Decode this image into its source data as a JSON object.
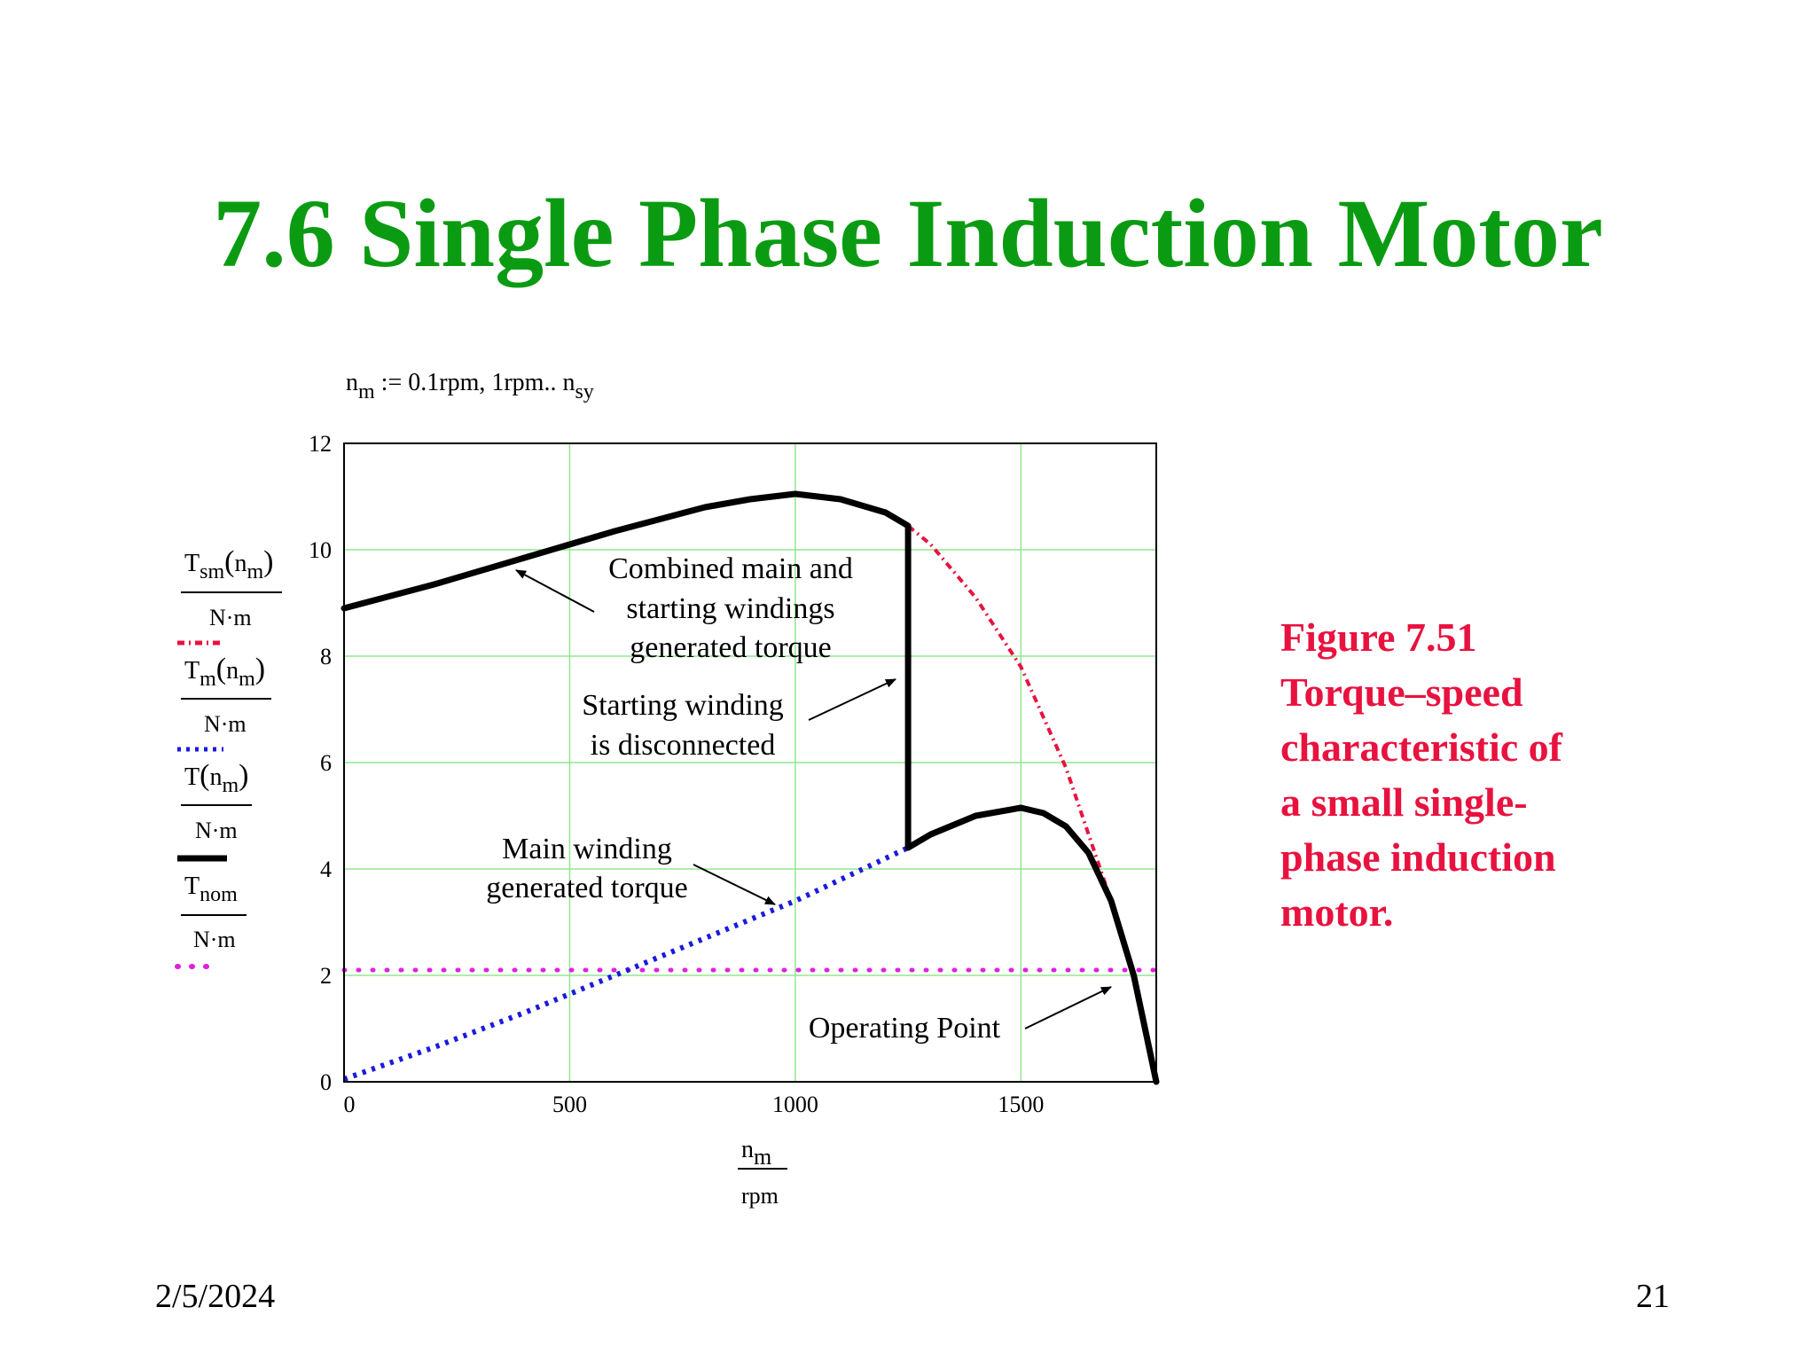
{
  "slide": {
    "title": "7.6 Single Phase Induction  Motor",
    "date": "2/5/2024",
    "page_number": "21",
    "caption_lines": [
      "Figure 7.51",
      "Torque–speed",
      "characteristic of",
      "a small single-",
      "phase induction",
      "motor."
    ]
  },
  "range_def": {
    "n": "n",
    "n_sub": "m",
    "rest": " := 0.1rpm, 1rpm.. n",
    "end_sub": "sy"
  },
  "legend": [
    {
      "num": "T",
      "sub": "sm",
      "arg": "n",
      "arg_sub": "m",
      "den": "N·m",
      "style": "dash-dot",
      "color": "#e8123f"
    },
    {
      "num": "T",
      "sub": "m",
      "arg": "n",
      "arg_sub": "m",
      "den": "N·m",
      "style": "dotted",
      "color": "#1a1ae0"
    },
    {
      "num": "T",
      "sub": "",
      "arg": "n",
      "arg_sub": "m",
      "den": "N·m",
      "style": "solid",
      "color": "#000000"
    },
    {
      "num": "T",
      "sub": "nom",
      "arg": "",
      "arg_sub": "",
      "den": "N·m",
      "style": "dotted",
      "color": "#e020e0"
    }
  ],
  "annotations": [
    {
      "lines": [
        "Combined main and",
        "starting windings",
        "generated torque"
      ]
    },
    {
      "lines": [
        "Starting winding",
        "is disconnected"
      ]
    },
    {
      "lines": [
        "Main winding",
        "generated torque"
      ]
    },
    {
      "lines": [
        "Operating Point"
      ]
    }
  ],
  "chart_data": {
    "type": "line",
    "xlabel": {
      "main": "n",
      "sub": "m",
      "den": "rpm"
    },
    "xlim": [
      0,
      1800
    ],
    "ylim": [
      0,
      12
    ],
    "xticks": [
      0,
      500,
      1000,
      1500
    ],
    "yticks": [
      0,
      2,
      4,
      6,
      8,
      10,
      12
    ],
    "grid": true,
    "series": [
      {
        "key": "Tsm",
        "color": "#e8123f",
        "style": "dash-dot",
        "x": [
          0,
          200,
          400,
          600,
          800,
          900,
          1000,
          1100,
          1200,
          1250,
          1300,
          1400,
          1500,
          1600,
          1680,
          1720,
          1760,
          1800
        ],
        "y": [
          8.9,
          9.35,
          9.85,
          10.35,
          10.8,
          10.95,
          11.05,
          10.95,
          10.7,
          10.45,
          10.1,
          9.1,
          7.8,
          5.9,
          3.9,
          2.9,
          1.7,
          0
        ]
      },
      {
        "key": "Tm",
        "color": "#1a1ae0",
        "style": "dotted",
        "x": [
          0,
          200,
          400,
          500,
          600,
          700,
          800,
          900,
          1000,
          1100,
          1200,
          1250,
          1300,
          1400,
          1500,
          1550,
          1600,
          1650,
          1700,
          1750,
          1800
        ],
        "y": [
          0.05,
          0.65,
          1.3,
          1.65,
          2.0,
          2.35,
          2.7,
          3.05,
          3.4,
          3.8,
          4.2,
          4.4,
          4.65,
          5.0,
          5.15,
          5.05,
          4.8,
          4.3,
          3.4,
          2.0,
          0
        ]
      },
      {
        "key": "T",
        "color": "#000000",
        "style": "solid",
        "x": [
          0,
          200,
          400,
          600,
          800,
          900,
          1000,
          1100,
          1200,
          1250,
          1250,
          1300,
          1400,
          1500,
          1550,
          1600,
          1650,
          1700,
          1750,
          1800
        ],
        "y": [
          8.9,
          9.35,
          9.85,
          10.35,
          10.8,
          10.95,
          11.05,
          10.95,
          10.7,
          10.45,
          4.4,
          4.65,
          5.0,
          5.15,
          5.05,
          4.8,
          4.3,
          3.4,
          2.0,
          0
        ]
      },
      {
        "key": "Tnom",
        "color": "#e020e0",
        "style": "dotted",
        "x": [
          0,
          1800
        ],
        "y": [
          2.1,
          2.1
        ]
      }
    ]
  }
}
